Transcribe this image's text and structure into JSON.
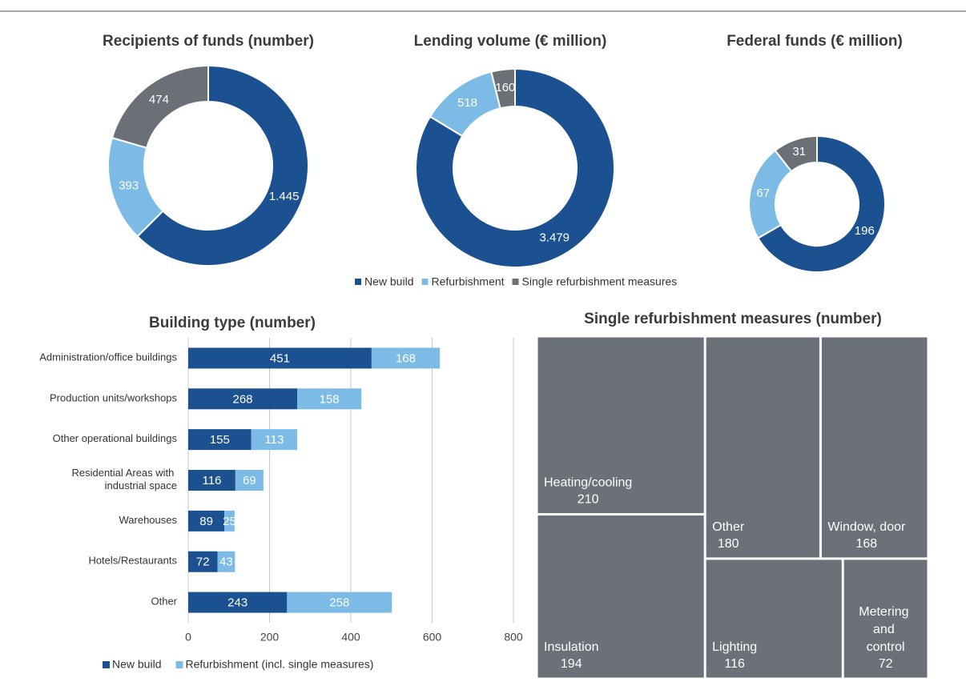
{
  "chart_data": [
    {
      "type": "donut",
      "categories": [
        "New build",
        "Refurbishment",
        "Single refurbishment measures"
      ],
      "colors": [
        "#1b5190",
        "#7cbbe6",
        "#6b6f76"
      ],
      "series": [
        {
          "name": "Recipients of funds (number)",
          "values": [
            1445,
            393,
            474
          ],
          "value_labels": [
            "1.445",
            "393",
            "474"
          ]
        },
        {
          "name": "Lending volume (€ million)",
          "values": [
            3479,
            518,
            160
          ],
          "value_labels": [
            "3.479",
            "518",
            "160"
          ]
        },
        {
          "name": "Federal funds (€ million)",
          "values": [
            196,
            67,
            31
          ],
          "value_labels": [
            "196",
            "67",
            "31"
          ]
        }
      ]
    },
    {
      "type": "bar",
      "orientation": "horizontal",
      "stacked": true,
      "title": "Building type (number)",
      "categories": [
        "Administration/office buildings",
        "Production units/workshops",
        "Other operational buildings",
        "Residential Areas with industrial space",
        "Warehouses",
        "Hotels/Restaurants",
        "Other"
      ],
      "series": [
        {
          "name": "New build",
          "color": "#1b5190",
          "values": [
            451,
            268,
            155,
            116,
            89,
            72,
            243
          ]
        },
        {
          "name": "Refurbishment (incl. single measures)",
          "color": "#7cbbe6",
          "values": [
            168,
            158,
            113,
            69,
            25,
            43,
            258
          ]
        }
      ],
      "xlim": [
        0,
        800
      ],
      "xticks": [
        0,
        200,
        400,
        600,
        800
      ],
      "grid": true
    },
    {
      "type": "treemap",
      "title": "Single refurbishment measures (number)",
      "color": "#6b7079",
      "categories": [
        "Heating/cooling",
        "Insulation",
        "Other",
        "Window, door",
        "Lighting",
        "Metering and control"
      ],
      "values": [
        210,
        194,
        180,
        168,
        116,
        72
      ]
    }
  ]
}
